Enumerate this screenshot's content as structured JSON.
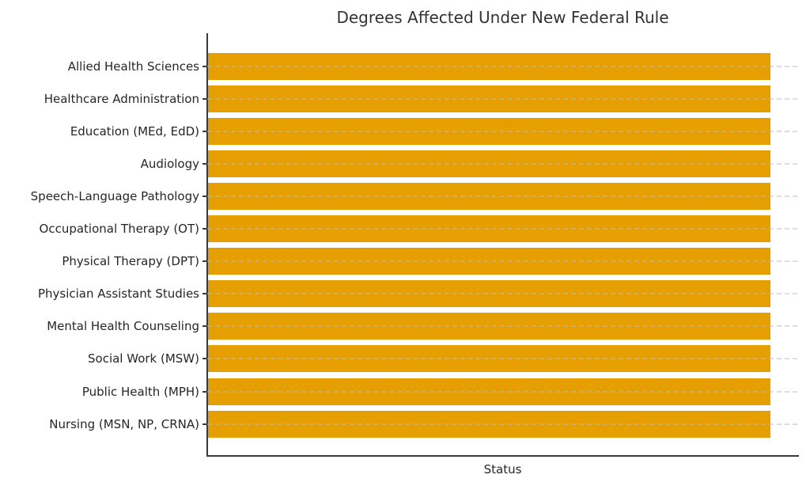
{
  "chart_data": {
    "type": "bar",
    "orientation": "horizontal",
    "title": "Degrees Affected Under New Federal Rule",
    "xlabel": "Status",
    "ylabel": "",
    "categories": [
      "Allied Health Sciences",
      "Healthcare Administration",
      "Education (MEd, EdD)",
      "Audiology",
      "Speech-Language Pathology",
      "Occupational Therapy (OT)",
      "Physical Therapy (DPT)",
      "Physician Assistant Studies",
      "Mental Health Counseling",
      "Social Work (MSW)",
      "Public Health (MPH)",
      "Nursing (MSN, NP, CRNA)"
    ],
    "values": [
      1,
      1,
      1,
      1,
      1,
      1,
      1,
      1,
      1,
      1,
      1,
      1
    ],
    "xlim": [
      0,
      1.05
    ],
    "x_tick_labels": [],
    "grid": {
      "axis": "y",
      "linestyle": "dashed",
      "color": "#dddddd",
      "drawn_over_bars": true
    },
    "legend": null,
    "colors": {
      "bar": "#E69F00",
      "spine": "#3a3a3a",
      "text": "#262626",
      "title": "#333333",
      "background": "#ffffff"
    }
  }
}
